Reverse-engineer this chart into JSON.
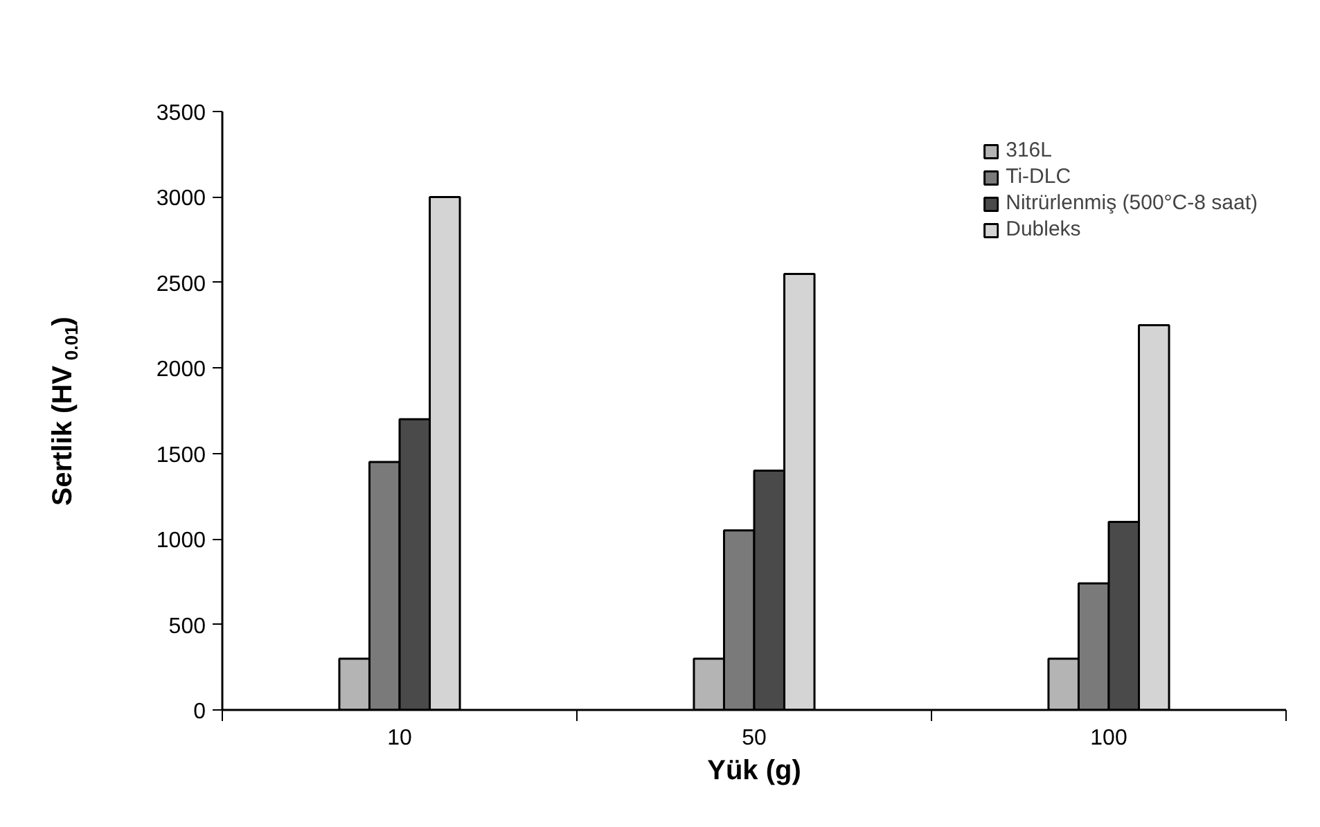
{
  "chart_data": {
    "type": "bar",
    "xlabel": "Yük (g)",
    "ylabel": "Sertlik (HV$_{0.01}$)",
    "categories": [
      "10",
      "50",
      "100"
    ],
    "series": [
      {
        "name": "316L",
        "color": "#b4b4b4",
        "values": [
          300,
          300,
          300
        ]
      },
      {
        "name": "Ti-DLC",
        "color": "#7a7a7a",
        "values": [
          1450,
          1050,
          740
        ]
      },
      {
        "name": "Nitrürlenmiş (500°C-8 saat)",
        "color": "#4a4a4a",
        "values": [
          1700,
          1400,
          1100
        ]
      },
      {
        "name": "Dubleks",
        "color": "#d4d4d4",
        "values": [
          3000,
          2550,
          2250
        ]
      }
    ],
    "ylim": [
      0,
      3500
    ],
    "yticks": [
      0,
      500,
      1000,
      1500,
      2000,
      2500,
      3000,
      3500
    ],
    "grid": false,
    "legend": "top right"
  }
}
